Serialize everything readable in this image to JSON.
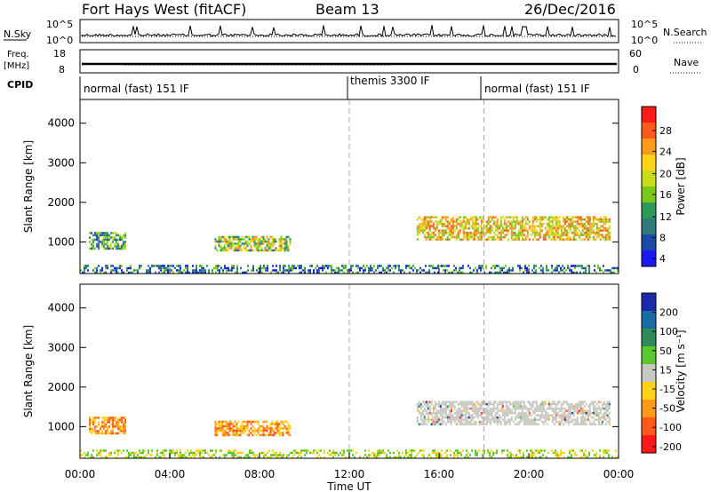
{
  "header": {
    "station": "Fort Hays West (fitACF)",
    "beam": "Beam 13",
    "date": "26/Dec/2016"
  },
  "summary_panels": {
    "nsky_label": "N.Sky",
    "nsky_ticks": [
      "10^5",
      "10^0"
    ],
    "nsearch_label": "N.Search",
    "nsearch_ticks": [
      "10^5",
      "10^0"
    ],
    "freq_label_line1": "Freq.",
    "freq_label_line2": "[MHz]",
    "freq_ticks": [
      "18",
      "8"
    ],
    "nave_label": "Nave",
    "nave_ticks": [
      "60",
      "0"
    ],
    "cpid_label": "CPID",
    "cpid_segments": [
      {
        "label": "normal (fast) 151 IF",
        "start_hour": 0
      },
      {
        "label": "themis 3300 IF",
        "start_hour": 12
      },
      {
        "label": "normal (fast) 151 IF",
        "start_hour": 18
      }
    ]
  },
  "colorbars": {
    "power": {
      "label": "Power [dB]",
      "ticks": [
        "28",
        "24",
        "20",
        "16",
        "12",
        "8",
        "4"
      ],
      "colors": [
        "#ff1a1a",
        "#ff5a1a",
        "#ff9a1a",
        "#ffd21a",
        "#c8dc1a",
        "#7ac81a",
        "#2e9a5a",
        "#2e7a7a",
        "#1a4aa8",
        "#1a1af0"
      ]
    },
    "velocity": {
      "label": "Velocity [m s⁻¹]",
      "ticks": [
        "200",
        "100",
        "50",
        "15",
        "-15",
        "-50",
        "-100",
        "-200"
      ],
      "colors": [
        "#1a2aa8",
        "#1a6aa8",
        "#2e8a5a",
        "#5ac82e",
        "#c8c8c0",
        "#ffd21a",
        "#ff9a1a",
        "#ff5a1a",
        "#ff1a1a"
      ]
    }
  },
  "chart_data": [
    {
      "type": "heatmap",
      "title": "Power",
      "xlabel": "Time UT",
      "ylabel": "Slant Range [km]",
      "xlim_hours": [
        0,
        24
      ],
      "ylim": [
        200,
        4600
      ],
      "yticks": [
        1000,
        2000,
        3000,
        4000
      ],
      "xticks": [
        "00:00",
        "04:00",
        "08:00",
        "12:00",
        "16:00",
        "20:00",
        "00:00"
      ],
      "dashed_lines_hours": [
        12,
        18
      ],
      "regions": [
        {
          "t0": 0.4,
          "t1": 2.0,
          "r0": 850,
          "r1": 1250,
          "level": "mid"
        },
        {
          "t0": 6.0,
          "t1": 9.4,
          "r0": 780,
          "r1": 1150,
          "level": "mid-high"
        },
        {
          "t0": 15.0,
          "t1": 23.6,
          "r0": 1050,
          "r1": 1650,
          "level": "high"
        },
        {
          "t0": 0.0,
          "t1": 24.0,
          "r0": 220,
          "r1": 420,
          "level": "low"
        }
      ]
    },
    {
      "type": "heatmap",
      "title": "Velocity",
      "xlabel": "Time UT",
      "ylabel": "Slant Range [km]",
      "xlim_hours": [
        0,
        24
      ],
      "ylim": [
        200,
        4600
      ],
      "yticks": [
        1000,
        2000,
        3000,
        4000
      ],
      "xticks": [
        "00:00",
        "04:00",
        "08:00",
        "12:00",
        "16:00",
        "20:00",
        "00:00"
      ],
      "dashed_lines_hours": [
        12,
        18
      ],
      "regions": [
        {
          "t0": 0.4,
          "t1": 2.0,
          "r0": 850,
          "r1": 1250,
          "level": "negative"
        },
        {
          "t0": 6.0,
          "t1": 9.4,
          "r0": 780,
          "r1": 1150,
          "level": "negative"
        },
        {
          "t0": 15.0,
          "t1": 23.6,
          "r0": 1050,
          "r1": 1650,
          "level": "ground"
        },
        {
          "t0": 0.0,
          "t1": 24.0,
          "r0": 220,
          "r1": 420,
          "level": "low"
        }
      ]
    }
  ]
}
